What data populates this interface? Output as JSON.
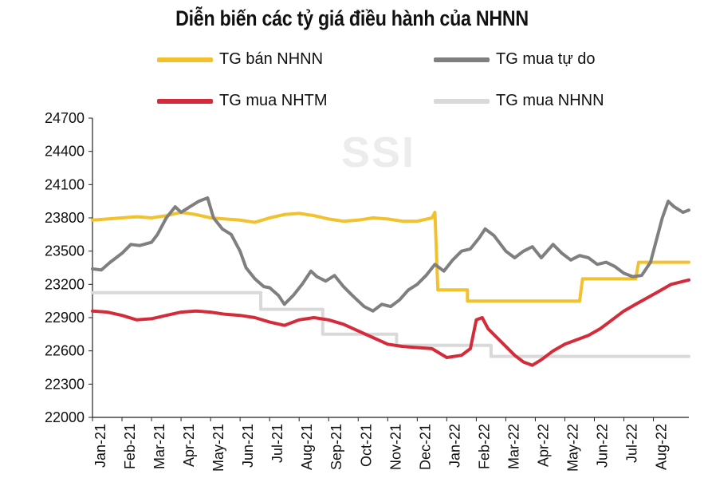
{
  "chart_data": {
    "type": "line",
    "title": "Diễn biến các tỷ giá điều hành của NHNN",
    "watermark": "SSI",
    "xlabel": "",
    "ylabel": "",
    "ylim": [
      22000,
      24700
    ],
    "y_ticks": [
      "22000",
      "22300",
      "22600",
      "22900",
      "23200",
      "23500",
      "23800",
      "24100",
      "24400",
      "24700"
    ],
    "x_ticks": [
      "Jan-21",
      "Feb-21",
      "Mar-21",
      "Apr-21",
      "May-21",
      "Jun-21",
      "Jul-21",
      "Aug-21",
      "Sep-21",
      "Oct-21",
      "Nov-21",
      "Dec-21",
      "Jan-22",
      "Feb-22",
      "Mar-22",
      "Apr-22",
      "May-22",
      "Jun-22",
      "Jul-22",
      "Aug-22"
    ],
    "x_range": [
      0,
      20.2
    ],
    "legend": [
      {
        "label": "TG bán NHNN",
        "color": "#f2c12e"
      },
      {
        "label": "TG mua tự do",
        "color": "#7f7f7f"
      },
      {
        "label": "TG mua NHTM",
        "color": "#d42b3a"
      },
      {
        "label": "TG mua NHNN",
        "color": "#d9d9d9"
      }
    ],
    "series": [
      {
        "name": "TG bán NHNN",
        "color": "#f2c12e",
        "step": false,
        "points": [
          [
            0,
            23780
          ],
          [
            0.5,
            23790
          ],
          [
            1,
            23800
          ],
          [
            1.5,
            23810
          ],
          [
            2,
            23800
          ],
          [
            2.5,
            23820
          ],
          [
            3,
            23850
          ],
          [
            3.5,
            23830
          ],
          [
            4,
            23800
          ],
          [
            4.5,
            23790
          ],
          [
            5,
            23780
          ],
          [
            5.5,
            23760
          ],
          [
            6,
            23800
          ],
          [
            6.5,
            23830
          ],
          [
            7,
            23840
          ],
          [
            7.5,
            23820
          ],
          [
            8,
            23790
          ],
          [
            8.5,
            23770
          ],
          [
            9,
            23780
          ],
          [
            9.5,
            23800
          ],
          [
            10,
            23790
          ],
          [
            10.5,
            23770
          ],
          [
            11,
            23770
          ],
          [
            11.5,
            23800
          ],
          [
            11.6,
            23850
          ],
          [
            11.7,
            23150
          ],
          [
            12.7,
            23150
          ],
          [
            12.7,
            23050
          ],
          [
            14.3,
            23050
          ],
          [
            15.5,
            23050
          ],
          [
            16.5,
            23050
          ],
          [
            16.6,
            23250
          ],
          [
            18.4,
            23250
          ],
          [
            18.5,
            23400
          ],
          [
            20.2,
            23400
          ]
        ]
      },
      {
        "name": "TG mua tự do",
        "color": "#7f7f7f",
        "step": false,
        "points": [
          [
            0,
            23340
          ],
          [
            0.3,
            23330
          ],
          [
            0.6,
            23400
          ],
          [
            1,
            23480
          ],
          [
            1.3,
            23560
          ],
          [
            1.6,
            23550
          ],
          [
            2,
            23580
          ],
          [
            2.2,
            23650
          ],
          [
            2.5,
            23800
          ],
          [
            2.8,
            23900
          ],
          [
            3,
            23850
          ],
          [
            3.3,
            23900
          ],
          [
            3.6,
            23950
          ],
          [
            3.9,
            23980
          ],
          [
            4.1,
            23800
          ],
          [
            4.4,
            23700
          ],
          [
            4.7,
            23650
          ],
          [
            5,
            23500
          ],
          [
            5.2,
            23350
          ],
          [
            5.5,
            23250
          ],
          [
            5.8,
            23180
          ],
          [
            6,
            23170
          ],
          [
            6.3,
            23100
          ],
          [
            6.5,
            23020
          ],
          [
            6.8,
            23100
          ],
          [
            7.1,
            23200
          ],
          [
            7.4,
            23320
          ],
          [
            7.6,
            23270
          ],
          [
            7.9,
            23230
          ],
          [
            8.2,
            23280
          ],
          [
            8.5,
            23180
          ],
          [
            8.8,
            23100
          ],
          [
            9.2,
            23000
          ],
          [
            9.5,
            22960
          ],
          [
            9.8,
            23020
          ],
          [
            10.1,
            23000
          ],
          [
            10.4,
            23060
          ],
          [
            10.7,
            23150
          ],
          [
            11,
            23200
          ],
          [
            11.3,
            23280
          ],
          [
            11.6,
            23380
          ],
          [
            11.9,
            23320
          ],
          [
            12.2,
            23420
          ],
          [
            12.5,
            23500
          ],
          [
            12.8,
            23520
          ],
          [
            13.1,
            23620
          ],
          [
            13.3,
            23700
          ],
          [
            13.6,
            23640
          ],
          [
            14,
            23500
          ],
          [
            14.3,
            23440
          ],
          [
            14.6,
            23500
          ],
          [
            14.9,
            23540
          ],
          [
            15.2,
            23440
          ],
          [
            15.6,
            23560
          ],
          [
            15.9,
            23480
          ],
          [
            16.2,
            23420
          ],
          [
            16.5,
            23460
          ],
          [
            16.8,
            23440
          ],
          [
            17.1,
            23380
          ],
          [
            17.4,
            23400
          ],
          [
            17.7,
            23360
          ],
          [
            18,
            23300
          ],
          [
            18.3,
            23270
          ],
          [
            18.6,
            23280
          ],
          [
            18.9,
            23400
          ],
          [
            19.1,
            23600
          ],
          [
            19.3,
            23800
          ],
          [
            19.5,
            23950
          ],
          [
            19.7,
            23900
          ],
          [
            20,
            23850
          ],
          [
            20.2,
            23870
          ]
        ]
      },
      {
        "name": "TG mua NHTM",
        "color": "#d42b3a",
        "step": false,
        "points": [
          [
            0,
            22960
          ],
          [
            0.5,
            22950
          ],
          [
            1,
            22920
          ],
          [
            1.5,
            22880
          ],
          [
            2,
            22890
          ],
          [
            2.5,
            22920
          ],
          [
            3,
            22950
          ],
          [
            3.5,
            22960
          ],
          [
            4,
            22950
          ],
          [
            4.5,
            22930
          ],
          [
            5,
            22920
          ],
          [
            5.5,
            22900
          ],
          [
            6,
            22860
          ],
          [
            6.5,
            22830
          ],
          [
            7,
            22880
          ],
          [
            7.5,
            22900
          ],
          [
            8,
            22880
          ],
          [
            8.5,
            22840
          ],
          [
            9,
            22780
          ],
          [
            9.5,
            22720
          ],
          [
            10,
            22660
          ],
          [
            10.5,
            22640
          ],
          [
            11,
            22630
          ],
          [
            11.5,
            22620
          ],
          [
            12,
            22540
          ],
          [
            12.5,
            22560
          ],
          [
            12.8,
            22620
          ],
          [
            13,
            22880
          ],
          [
            13.2,
            22900
          ],
          [
            13.4,
            22800
          ],
          [
            13.7,
            22720
          ],
          [
            14,
            22640
          ],
          [
            14.3,
            22560
          ],
          [
            14.6,
            22500
          ],
          [
            14.9,
            22470
          ],
          [
            15.2,
            22520
          ],
          [
            15.6,
            22600
          ],
          [
            16,
            22660
          ],
          [
            16.4,
            22700
          ],
          [
            16.8,
            22740
          ],
          [
            17.2,
            22800
          ],
          [
            17.6,
            22880
          ],
          [
            18,
            22960
          ],
          [
            18.4,
            23020
          ],
          [
            18.8,
            23080
          ],
          [
            19.2,
            23140
          ],
          [
            19.6,
            23200
          ],
          [
            19.9,
            23220
          ],
          [
            20.2,
            23240
          ]
        ]
      },
      {
        "name": "TG mua NHNN",
        "color": "#d9d9d9",
        "step": false,
        "points": [
          [
            0,
            23125
          ],
          [
            5.7,
            23125
          ],
          [
            5.7,
            22975
          ],
          [
            7.8,
            22975
          ],
          [
            7.8,
            22750
          ],
          [
            10.3,
            22750
          ],
          [
            10.3,
            22650
          ],
          [
            13.5,
            22650
          ],
          [
            13.5,
            22550
          ],
          [
            20.2,
            22550
          ]
        ]
      }
    ]
  }
}
